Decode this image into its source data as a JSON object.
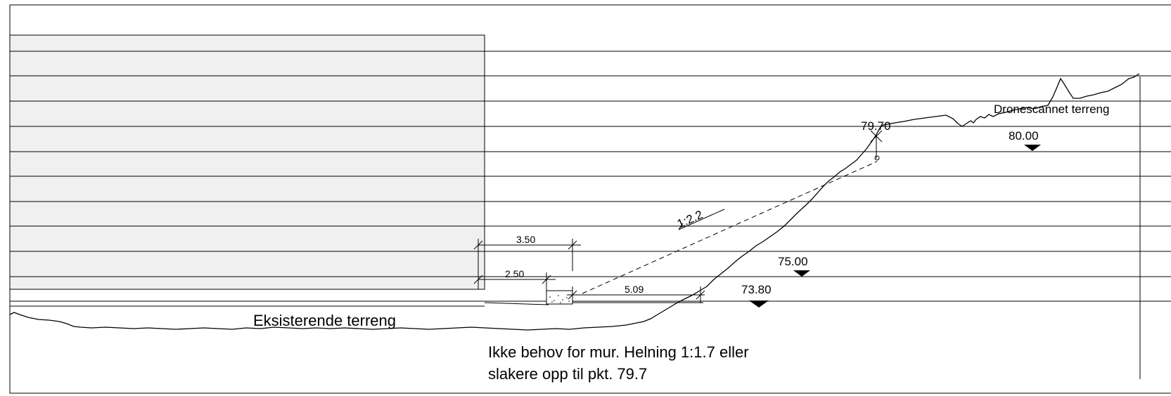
{
  "labels": {
    "existing_terrain": "Eksisterende terreng",
    "drone_terrain": "Dronescannet terreng",
    "note_line1": "Ikke behov for mur. Helning 1:1.7 eller",
    "note_line2": "slakere opp til pkt. 79.7",
    "slope_ratio": "1:2.2"
  },
  "elevations": {
    "top_point": "79.70",
    "top_terrain": "80.00",
    "mid_level": "75.00",
    "base_level": "73.80"
  },
  "dimensions": {
    "width_outer": "3.50",
    "width_inner": "2.50",
    "horizontal_run": "5.09"
  },
  "colors": {
    "line": "#000000",
    "shaded_block": "#f0f0f0",
    "background": "#ffffff"
  }
}
